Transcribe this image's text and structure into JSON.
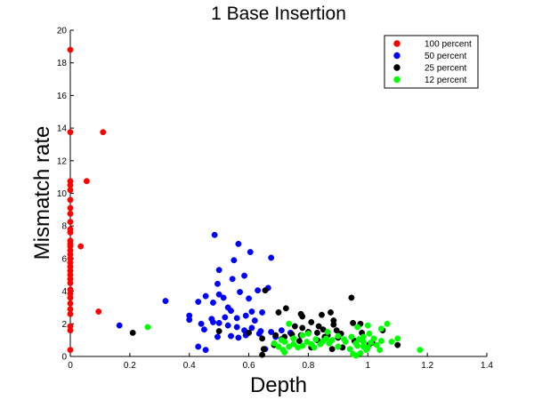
{
  "chart_data": {
    "type": "scatter",
    "title": "1 Base Insertion",
    "xlabel": "Depth",
    "ylabel": "Mismatch rate",
    "xlim": [
      0,
      1.4
    ],
    "ylim": [
      0,
      20
    ],
    "xticks": [
      0,
      0.2,
      0.4,
      0.6,
      0.8,
      1,
      1.2,
      1.4
    ],
    "xtick_labels": [
      "0",
      "0.2",
      "0.4",
      "0.6",
      "0.8",
      "1",
      "1.2",
      "1.4"
    ],
    "yticks": [
      0,
      2,
      4,
      6,
      8,
      10,
      12,
      14,
      16,
      18,
      20
    ],
    "ytick_labels": [
      "0",
      "2",
      "4",
      "6",
      "8",
      "10",
      "12",
      "14",
      "16",
      "18",
      "20"
    ],
    "grid": false,
    "legend_position": "top-right",
    "series": [
      {
        "name": "100 percent",
        "color": "#ff0000",
        "points": [
          [
            0,
            18.8
          ],
          [
            0,
            13.75
          ],
          [
            0.11,
            13.75
          ],
          [
            0.055,
            10.75
          ],
          [
            0,
            10.75
          ],
          [
            0,
            10.5
          ],
          [
            0,
            10.2
          ],
          [
            0,
            9.6
          ],
          [
            0,
            9.1
          ],
          [
            0,
            8.75
          ],
          [
            0,
            8.25
          ],
          [
            0,
            7.8
          ],
          [
            0,
            7.6
          ],
          [
            0,
            7.1
          ],
          [
            0,
            6.9
          ],
          [
            0,
            6.75
          ],
          [
            0.035,
            6.75
          ],
          [
            0,
            6.5
          ],
          [
            0,
            6.25
          ],
          [
            0,
            6.0
          ],
          [
            0,
            5.75
          ],
          [
            0,
            5.5
          ],
          [
            0,
            5.25
          ],
          [
            0,
            5.0
          ],
          [
            0,
            4.75
          ],
          [
            0,
            4.5
          ],
          [
            0,
            4.1
          ],
          [
            0,
            3.85
          ],
          [
            0,
            3.6
          ],
          [
            0,
            3.25
          ],
          [
            0,
            2.9
          ],
          [
            0,
            2.6
          ],
          [
            0.095,
            2.75
          ],
          [
            0,
            1.85
          ],
          [
            0,
            1.6
          ],
          [
            0,
            0.4
          ]
        ]
      },
      {
        "name": "50 percent",
        "color": "#0000ff",
        "points": [
          [
            0.485,
            7.45
          ],
          [
            0.565,
            6.9
          ],
          [
            0.605,
            6.4
          ],
          [
            0.675,
            6.05
          ],
          [
            0.55,
            5.9
          ],
          [
            0.5,
            5.3
          ],
          [
            0.585,
            4.95
          ],
          [
            0.545,
            4.75
          ],
          [
            0.495,
            4.45
          ],
          [
            0.665,
            4.2
          ],
          [
            0.63,
            4.05
          ],
          [
            0.57,
            3.95
          ],
          [
            0.5,
            3.8
          ],
          [
            0.455,
            3.7
          ],
          [
            0.515,
            3.6
          ],
          [
            0.6,
            3.55
          ],
          [
            0.32,
            3.4
          ],
          [
            0.43,
            3.35
          ],
          [
            0.48,
            3.3
          ],
          [
            0.53,
            3.0
          ],
          [
            0.54,
            2.8
          ],
          [
            0.61,
            2.75
          ],
          [
            0.645,
            2.7
          ],
          [
            0.4,
            2.5
          ],
          [
            0.59,
            2.5
          ],
          [
            0.52,
            2.4
          ],
          [
            0.56,
            2.35
          ],
          [
            0.475,
            2.3
          ],
          [
            0.4,
            2.25
          ],
          [
            0.62,
            2.2
          ],
          [
            0.48,
            2.1
          ],
          [
            0.5,
            2.05
          ],
          [
            0.44,
            2.0
          ],
          [
            0.165,
            1.9
          ],
          [
            0.53,
            1.9
          ],
          [
            0.56,
            1.8
          ],
          [
            0.61,
            1.75
          ],
          [
            0.45,
            1.65
          ],
          [
            0.585,
            1.6
          ],
          [
            0.71,
            1.6
          ],
          [
            0.64,
            1.55
          ],
          [
            0.675,
            1.5
          ],
          [
            0.635,
            1.4
          ],
          [
            0.74,
            1.45
          ],
          [
            0.59,
            1.3
          ],
          [
            0.54,
            1.25
          ],
          [
            0.495,
            1.2
          ],
          [
            0.565,
            1.15
          ],
          [
            0.69,
            1.2
          ],
          [
            0.43,
            0.6
          ],
          [
            0.455,
            0.4
          ],
          [
            0.655,
            0.45
          ]
        ]
      },
      {
        "name": "25 percent",
        "color": "#000000",
        "points": [
          [
            0.655,
            4.05
          ],
          [
            0.945,
            3.6
          ],
          [
            0.725,
            2.95
          ],
          [
            0.7,
            2.7
          ],
          [
            0.775,
            2.6
          ],
          [
            0.78,
            2.45
          ],
          [
            0.845,
            2.55
          ],
          [
            0.875,
            2.7
          ],
          [
            0.885,
            2.2
          ],
          [
            0.81,
            2.1
          ],
          [
            0.95,
            2.05
          ],
          [
            0.975,
            2.0
          ],
          [
            0.885,
            1.95
          ],
          [
            0.835,
            1.85
          ],
          [
            0.755,
            1.85
          ],
          [
            0.78,
            1.75
          ],
          [
            0.85,
            1.65
          ],
          [
            0.895,
            1.6
          ],
          [
            1.05,
            1.6
          ],
          [
            0.8,
            1.5
          ],
          [
            0.83,
            1.45
          ],
          [
            0.91,
            1.4
          ],
          [
            0.98,
            1.45
          ],
          [
            0.745,
            1.35
          ],
          [
            0.775,
            1.3
          ],
          [
            0.865,
            1.3
          ],
          [
            0.69,
            1.3
          ],
          [
            0.72,
            1.2
          ],
          [
            0.855,
            1.2
          ],
          [
            0.9,
            1.15
          ],
          [
            0.5,
            1.55
          ],
          [
            0.6,
            1.45
          ],
          [
            0.21,
            1.45
          ],
          [
            0.645,
            1.1
          ],
          [
            0.71,
            1.05
          ],
          [
            0.77,
            0.95
          ],
          [
            0.83,
            1.0
          ],
          [
            0.955,
            0.95
          ],
          [
            1.015,
            0.85
          ],
          [
            1.005,
            0.75
          ],
          [
            1.1,
            0.7
          ],
          [
            0.685,
            0.7
          ],
          [
            0.81,
            0.55
          ],
          [
            0.88,
            0.45
          ],
          [
            0.915,
            0.55
          ],
          [
            0.65,
            0.45
          ],
          [
            0.645,
            0.1
          ]
        ]
      },
      {
        "name": "12 percent",
        "color": "#00ff00",
        "points": [
          [
            0.26,
            1.8
          ],
          [
            0.735,
            2.0
          ],
          [
            1.065,
            2.0
          ],
          [
            0.965,
            1.8
          ],
          [
            1.0,
            1.9
          ],
          [
            1.045,
            1.7
          ],
          [
            1.1,
            1.1
          ],
          [
            1.08,
            0.9
          ],
          [
            1.175,
            0.4
          ],
          [
            1.045,
            0.95
          ],
          [
            1.02,
            1.1
          ],
          [
            1.03,
            0.7
          ],
          [
            0.985,
            0.6
          ],
          [
            0.96,
            0.8
          ],
          [
            0.945,
            1.2
          ],
          [
            0.985,
            1.2
          ],
          [
            1.005,
            1.4
          ],
          [
            1.01,
            0.85
          ],
          [
            0.995,
            0.4
          ],
          [
            0.975,
            0.2
          ],
          [
            0.96,
            0.05
          ],
          [
            0.95,
            0.15
          ],
          [
            0.925,
            0.9
          ],
          [
            0.92,
            1.05
          ],
          [
            0.9,
            1.25
          ],
          [
            0.88,
            1.0
          ],
          [
            0.87,
            0.8
          ],
          [
            0.86,
            1.1
          ],
          [
            0.85,
            0.95
          ],
          [
            0.84,
            0.75
          ],
          [
            0.825,
            1.05
          ],
          [
            0.81,
            0.75
          ],
          [
            0.795,
            0.9
          ],
          [
            0.78,
            0.65
          ],
          [
            0.765,
            0.55
          ],
          [
            0.75,
            0.75
          ],
          [
            0.735,
            0.6
          ],
          [
            0.72,
            0.9
          ],
          [
            0.715,
            0.4
          ],
          [
            0.7,
            0.6
          ],
          [
            0.685,
            0.8
          ],
          [
            0.75,
            1.1
          ],
          [
            0.82,
            0.55
          ],
          [
            0.9,
            0.6
          ],
          [
            0.94,
            0.45
          ],
          [
            0.965,
            0.65
          ],
          [
            1.0,
            0.55
          ],
          [
            1.04,
            0.4
          ],
          [
            0.72,
            0.25
          ],
          [
            0.78,
            1.3
          ],
          [
            0.71,
            1.0
          ],
          [
            0.8,
            1.4
          ],
          [
            0.865,
            1.5
          ],
          [
            0.97,
            1.05
          ],
          [
            0.985,
            0.9
          ]
        ]
      }
    ]
  }
}
